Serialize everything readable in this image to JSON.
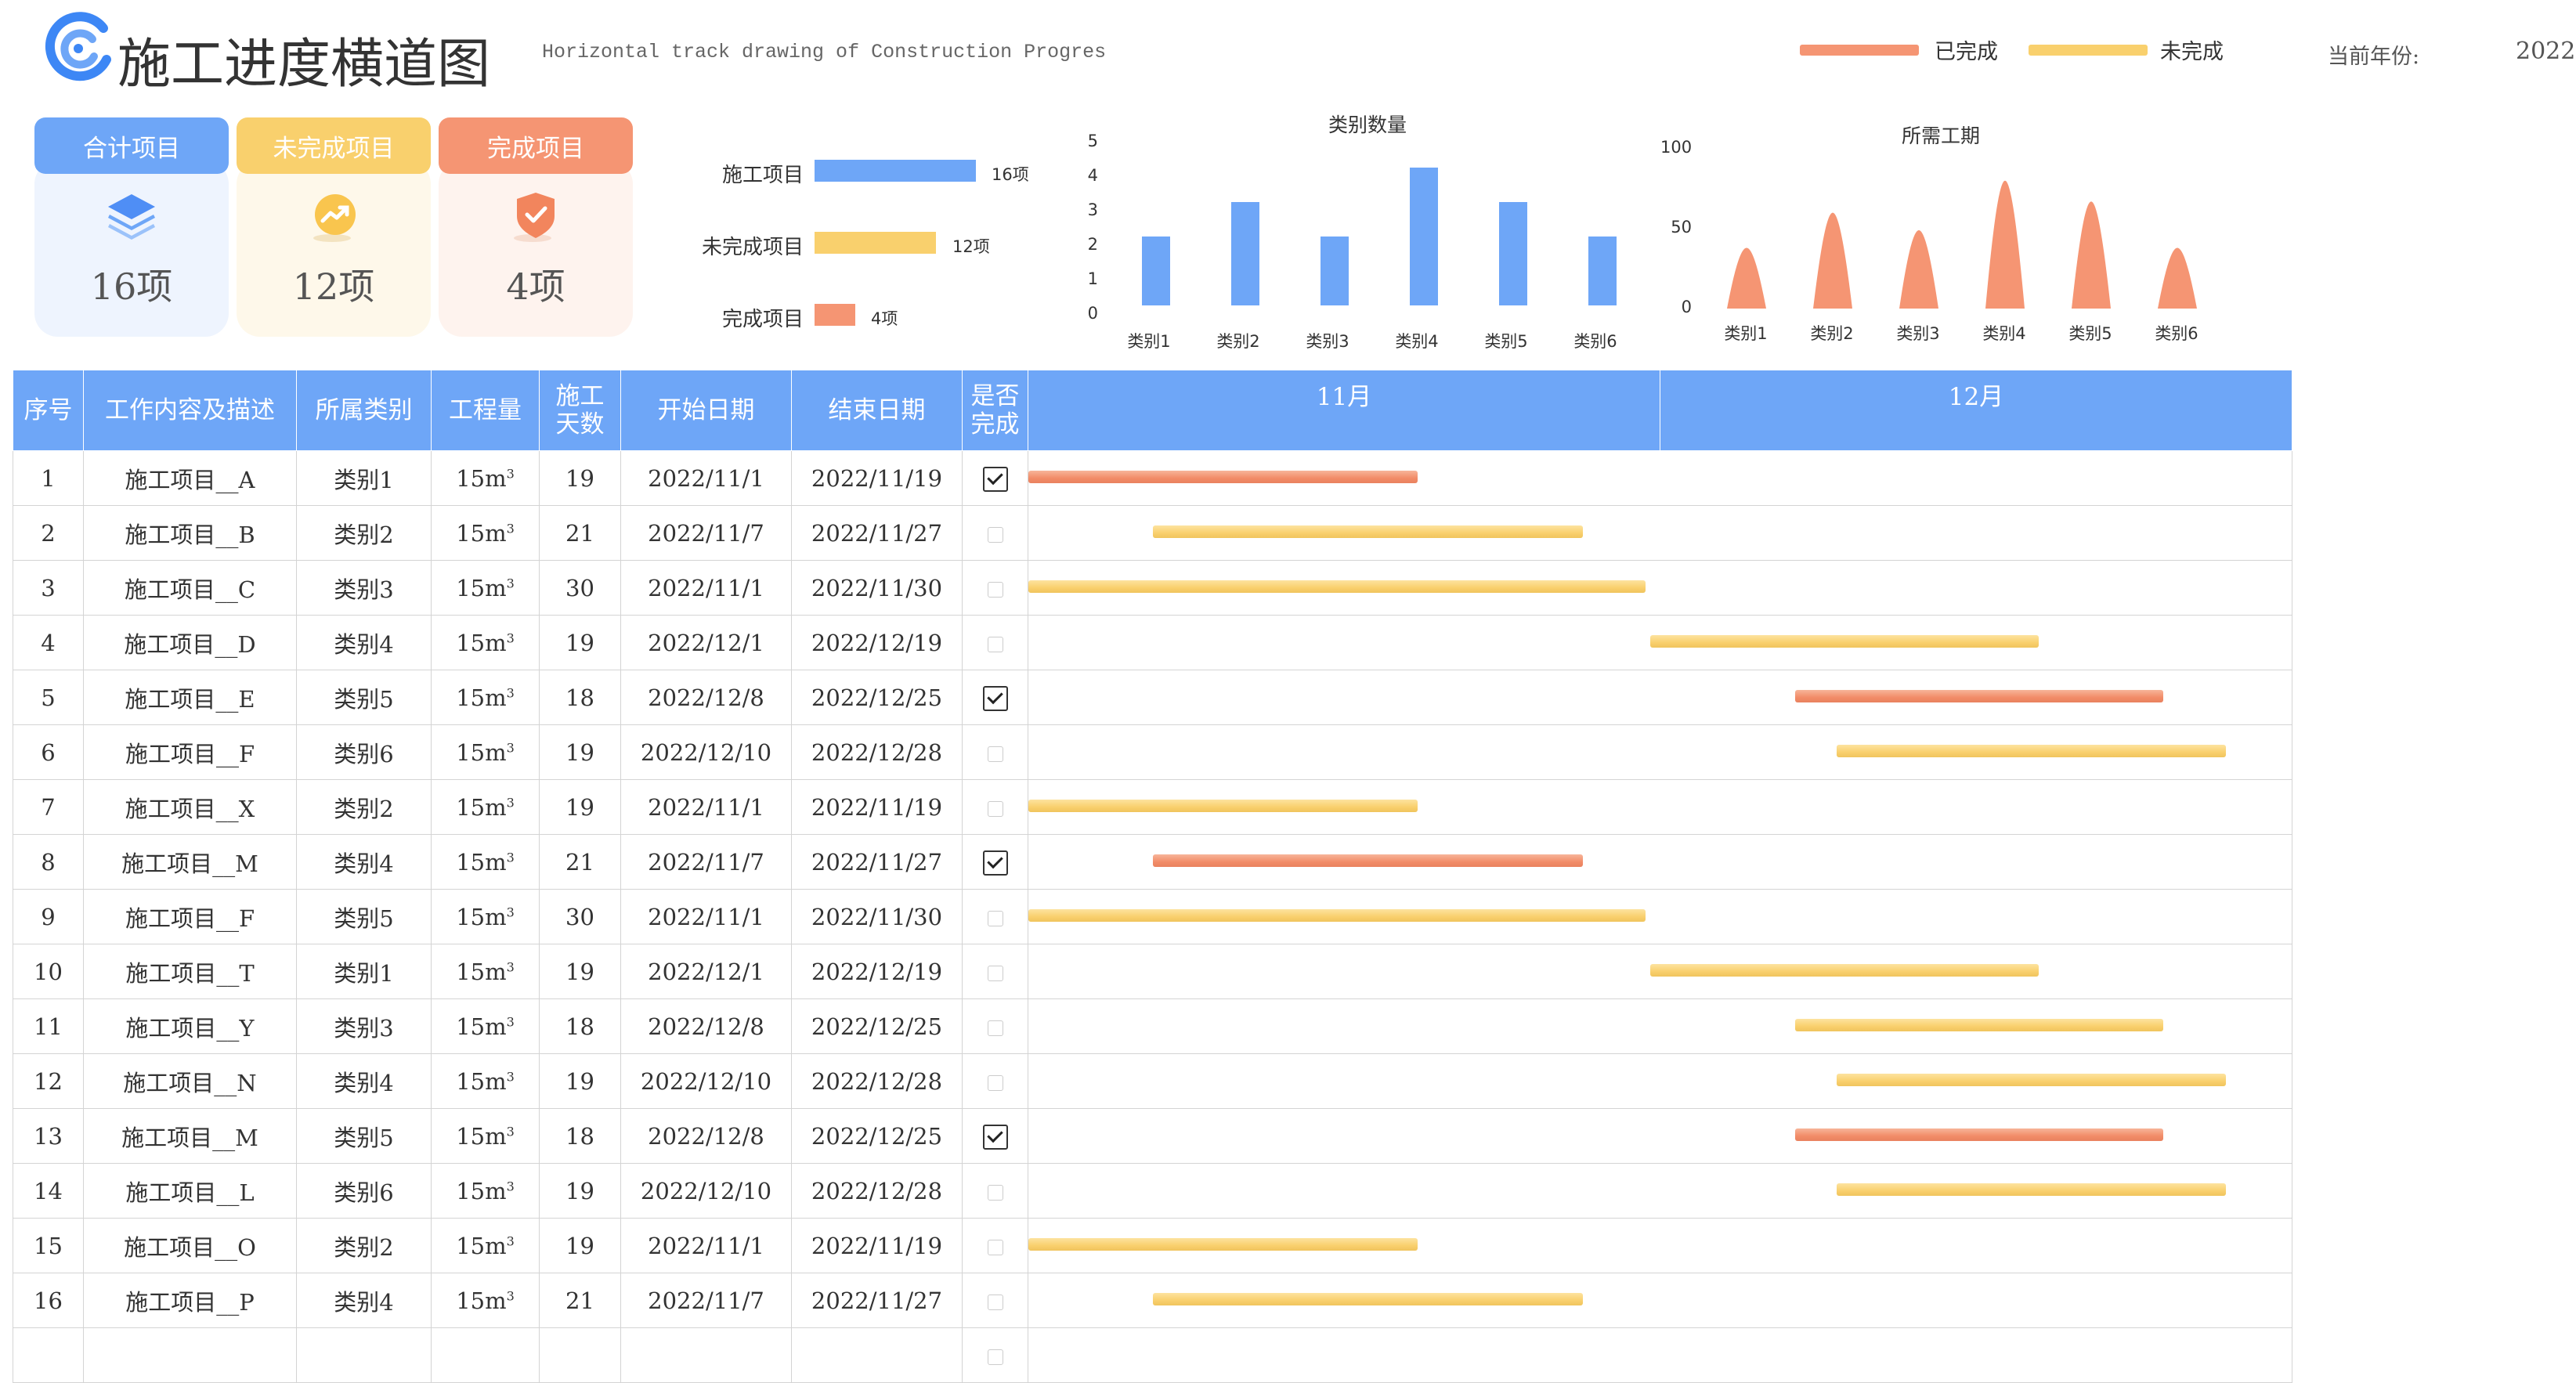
{
  "header": {
    "title": "施工进度横道图",
    "subtitle": "Horizontal track drawing of Construction Progres",
    "legend": [
      {
        "label": "已完成",
        "color": "#f28c68"
      },
      {
        "label": "未完成",
        "color": "#f9d06d"
      }
    ],
    "year_label": "当前年份:",
    "year_value": "2022"
  },
  "cards": [
    {
      "title": "合计项目",
      "value": "16项",
      "icon": "layers-icon",
      "color": "#6ea6f7"
    },
    {
      "title": "未完成项目",
      "value": "12项",
      "icon": "trend-up-icon",
      "color": "#f9d06d"
    },
    {
      "title": "完成项目",
      "value": "4项",
      "icon": "shield-check-icon",
      "color": "#f59573"
    }
  ],
  "chart_data": [
    {
      "type": "bar",
      "orientation": "horizontal",
      "categories": [
        "施工项目",
        "未完成项目",
        "完成项目"
      ],
      "values": [
        16,
        12,
        4
      ],
      "value_labels": [
        "16项",
        "12项",
        "4项"
      ],
      "colors": [
        "#6ea6f7",
        "#f9d06d",
        "#f59573"
      ]
    },
    {
      "type": "bar",
      "title": "类别数量",
      "categories": [
        "类别1",
        "类别2",
        "类别3",
        "类别4",
        "类别5",
        "类别6"
      ],
      "values": [
        2,
        3,
        2,
        4,
        3,
        2
      ],
      "yticks": [
        "5",
        "4",
        "3",
        "2",
        "1",
        "0"
      ],
      "ylim": [
        0,
        5
      ],
      "color": "#6ea6f7"
    },
    {
      "type": "area",
      "title": "所需工期",
      "categories": [
        "类别1",
        "类别2",
        "类别3",
        "类别4",
        "类别5",
        "类别6"
      ],
      "values": [
        38,
        60,
        49,
        80,
        67,
        38
      ],
      "yticks": [
        "100",
        "50",
        "0"
      ],
      "ylim": [
        0,
        100
      ],
      "color": "#f59573"
    }
  ],
  "table": {
    "headers": {
      "seq": "序号",
      "desc": "工作内容及描述",
      "cat": "所属类别",
      "qty": "工程量",
      "days_1": "施工",
      "days_2": "天数",
      "start": "开始日期",
      "end": "结束日期",
      "done_1": "是否",
      "done_2": "完成",
      "month1": "11月",
      "month2": "12月"
    },
    "timeline_start": "2022/11/1",
    "timeline_days": 61,
    "rows": [
      {
        "seq": "1",
        "name": "施工项目__A",
        "cat": "类别1",
        "qty": "15m",
        "qty_sup": "3",
        "days": "19",
        "start": "2022/11/1",
        "end": "2022/11/19",
        "done": true
      },
      {
        "seq": "2",
        "name": "施工项目__B",
        "cat": "类别2",
        "qty": "15m",
        "qty_sup": "3",
        "days": "21",
        "start": "2022/11/7",
        "end": "2022/11/27",
        "done": false
      },
      {
        "seq": "3",
        "name": "施工项目__C",
        "cat": "类别3",
        "qty": "15m",
        "qty_sup": "3",
        "days": "30",
        "start": "2022/11/1",
        "end": "2022/11/30",
        "done": false
      },
      {
        "seq": "4",
        "name": "施工项目__D",
        "cat": "类别4",
        "qty": "15m",
        "qty_sup": "3",
        "days": "19",
        "start": "2022/12/1",
        "end": "2022/12/19",
        "done": false
      },
      {
        "seq": "5",
        "name": "施工项目__E",
        "cat": "类别5",
        "qty": "15m",
        "qty_sup": "3",
        "days": "18",
        "start": "2022/12/8",
        "end": "2022/12/25",
        "done": true
      },
      {
        "seq": "6",
        "name": "施工项目__F",
        "cat": "类别6",
        "qty": "15m",
        "qty_sup": "3",
        "days": "19",
        "start": "2022/12/10",
        "end": "2022/12/28",
        "done": false
      },
      {
        "seq": "7",
        "name": "施工项目__X",
        "cat": "类别2",
        "qty": "15m",
        "qty_sup": "3",
        "days": "19",
        "start": "2022/11/1",
        "end": "2022/11/19",
        "done": false
      },
      {
        "seq": "8",
        "name": "施工项目__M",
        "cat": "类别4",
        "qty": "15m",
        "qty_sup": "3",
        "days": "21",
        "start": "2022/11/7",
        "end": "2022/11/27",
        "done": true
      },
      {
        "seq": "9",
        "name": "施工项目__F",
        "cat": "类别5",
        "qty": "15m",
        "qty_sup": "3",
        "days": "30",
        "start": "2022/11/1",
        "end": "2022/11/30",
        "done": false
      },
      {
        "seq": "10",
        "name": "施工项目__T",
        "cat": "类别1",
        "qty": "15m",
        "qty_sup": "3",
        "days": "19",
        "start": "2022/12/1",
        "end": "2022/12/19",
        "done": false
      },
      {
        "seq": "11",
        "name": "施工项目__Y",
        "cat": "类别3",
        "qty": "15m",
        "qty_sup": "3",
        "days": "18",
        "start": "2022/12/8",
        "end": "2022/12/25",
        "done": false
      },
      {
        "seq": "12",
        "name": "施工项目__N",
        "cat": "类别4",
        "qty": "15m",
        "qty_sup": "3",
        "days": "19",
        "start": "2022/12/10",
        "end": "2022/12/28",
        "done": false
      },
      {
        "seq": "13",
        "name": "施工项目__M",
        "cat": "类别5",
        "qty": "15m",
        "qty_sup": "3",
        "days": "18",
        "start": "2022/12/8",
        "end": "2022/12/25",
        "done": true
      },
      {
        "seq": "14",
        "name": "施工项目__L",
        "cat": "类别6",
        "qty": "15m",
        "qty_sup": "3",
        "days": "19",
        "start": "2022/12/10",
        "end": "2022/12/28",
        "done": false
      },
      {
        "seq": "15",
        "name": "施工项目__O",
        "cat": "类别2",
        "qty": "15m",
        "qty_sup": "3",
        "days": "19",
        "start": "2022/11/1",
        "end": "2022/11/19",
        "done": false
      },
      {
        "seq": "16",
        "name": "施工项目__P",
        "cat": "类别4",
        "qty": "15m",
        "qty_sup": "3",
        "days": "21",
        "start": "2022/11/7",
        "end": "2022/11/27",
        "done": false
      }
    ]
  }
}
